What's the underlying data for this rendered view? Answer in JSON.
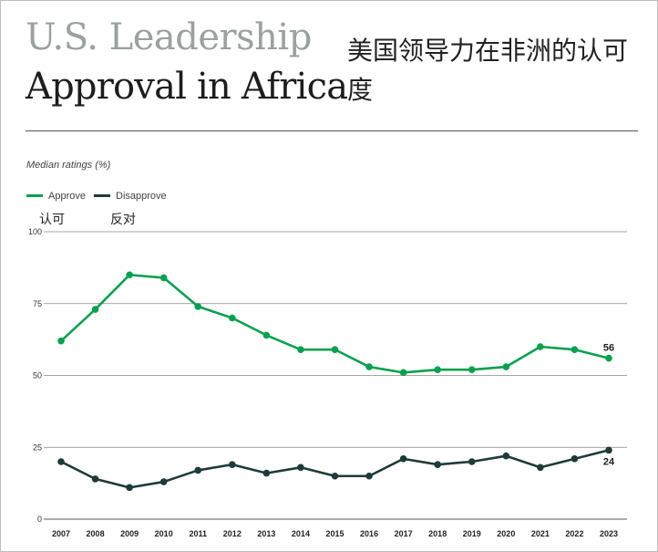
{
  "header": {
    "title_line1": "U.S. Leadership",
    "title_line2": "Approval in Africa",
    "title_cn": "美国领导力在非洲的认可度"
  },
  "colors": {
    "approve": "#0aa04f",
    "disapprove": "#1f3a3a",
    "grid": "#888888"
  },
  "chart_data": {
    "type": "line",
    "subtitle": "Median ratings (%)",
    "x": [
      "2007",
      "2008",
      "2009",
      "2010",
      "2011",
      "2012",
      "2013",
      "2014",
      "2015",
      "2016",
      "2017",
      "2018",
      "2019",
      "2020",
      "2021",
      "2022",
      "2023"
    ],
    "ylim": [
      0,
      100
    ],
    "yticks": [
      0,
      25,
      50,
      75,
      100
    ],
    "grid": true,
    "legend_position": "top-left",
    "series": [
      {
        "name": "Approve",
        "name_cn": "认可",
        "color": "#0aa04f",
        "values": [
          62,
          73,
          85,
          84,
          74,
          70,
          64,
          59,
          59,
          53,
          51,
          52,
          52,
          53,
          60,
          59,
          56
        ],
        "end_label": "56"
      },
      {
        "name": "Disapprove",
        "name_cn": "反对",
        "color": "#1f3a3a",
        "values": [
          20,
          14,
          11,
          13,
          17,
          19,
          16,
          18,
          15,
          15,
          21,
          19,
          20,
          22,
          18,
          21,
          24
        ],
        "end_label": "24"
      }
    ]
  }
}
